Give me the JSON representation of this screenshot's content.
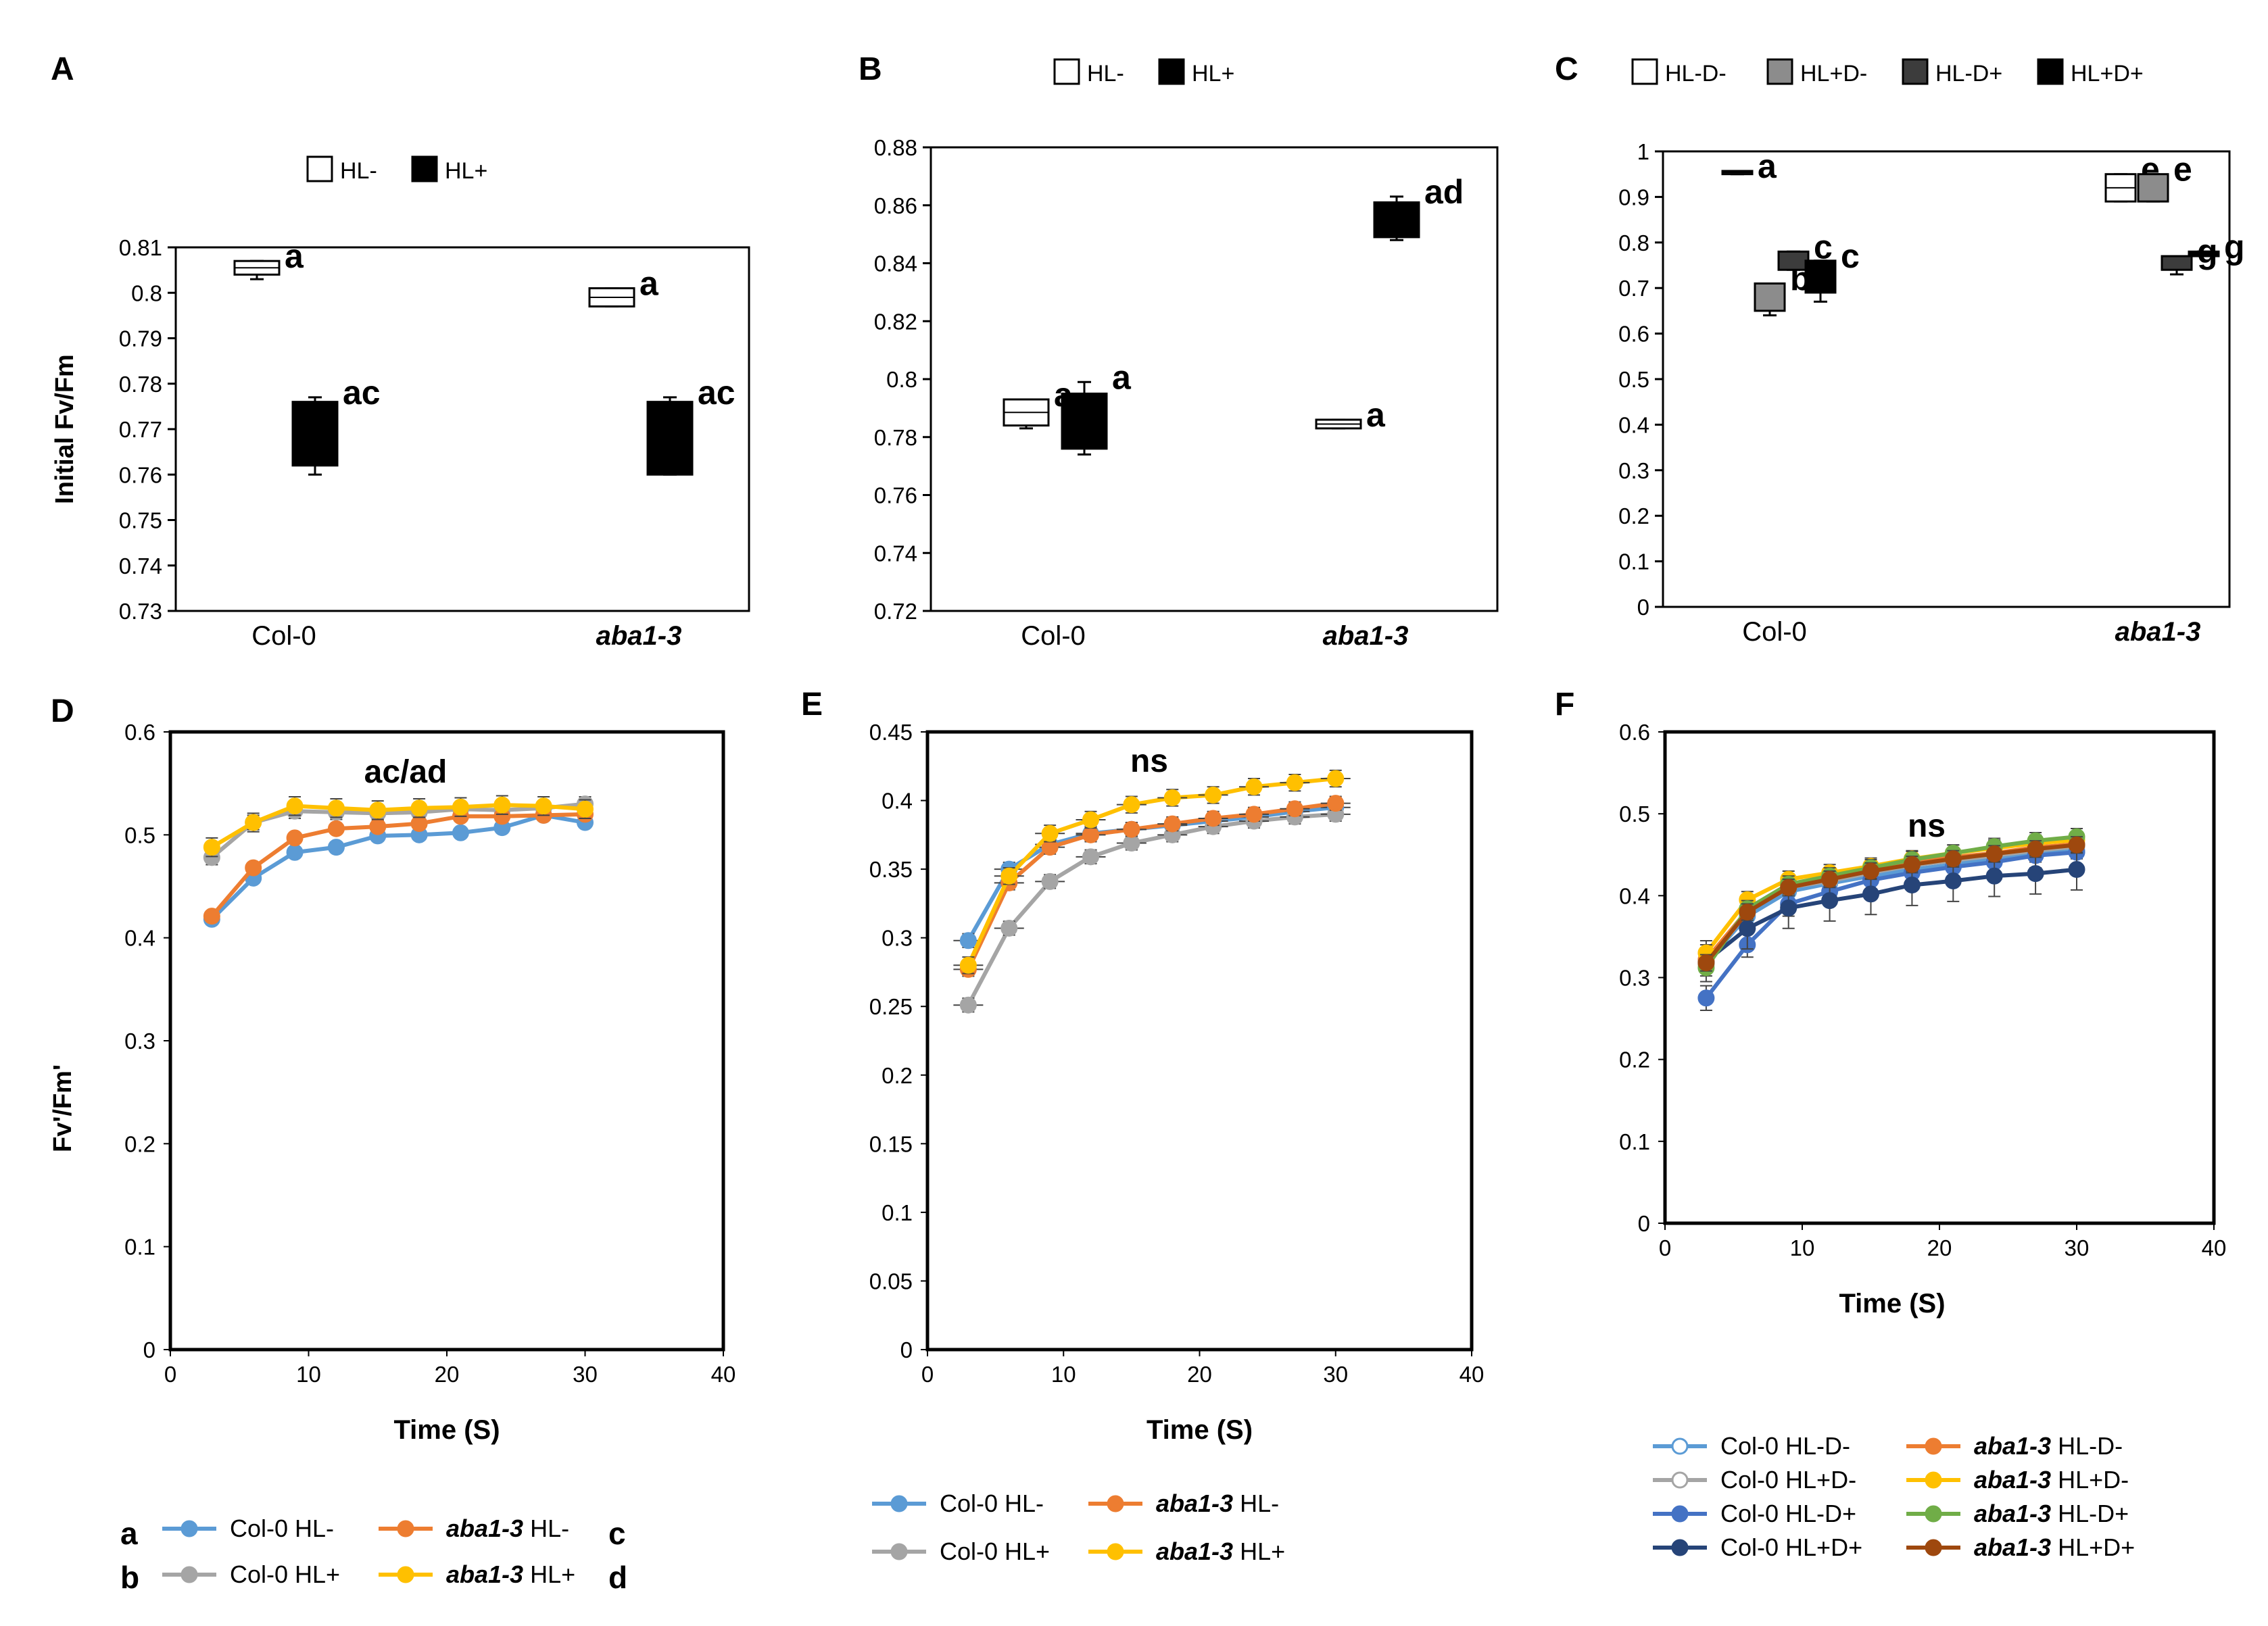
{
  "figure": {
    "y_label_top": "Initial Fv/Fm",
    "y_label_bottom": "Fv'/Fm'"
  },
  "chart_data": [
    {
      "panel": "A",
      "type": "box",
      "legend": [
        {
          "label": "HL-",
          "color": "#ffffff"
        },
        {
          "label": "HL+",
          "color": "#000000"
        }
      ],
      "categories": [
        "Col-0",
        "aba1-3"
      ],
      "italic_categories": [
        false,
        true
      ],
      "ylim": [
        0.73,
        0.81
      ],
      "yticks": [
        0.73,
        0.74,
        0.75,
        0.76,
        0.77,
        0.78,
        0.79,
        0.8,
        0.81
      ],
      "ylabel": "Initial Fv/Fm",
      "boxes": [
        {
          "cat": 0,
          "series": 0,
          "min": 0.803,
          "q1": 0.804,
          "q3": 0.807,
          "max": 0.807,
          "label": "a"
        },
        {
          "cat": 0,
          "series": 1,
          "min": 0.76,
          "q1": 0.762,
          "q3": 0.776,
          "max": 0.777,
          "label": "ac"
        },
        {
          "cat": 1,
          "series": 0,
          "min": 0.797,
          "q1": 0.797,
          "q3": 0.801,
          "max": 0.801,
          "label": "a"
        },
        {
          "cat": 1,
          "series": 1,
          "min": 0.76,
          "q1": 0.76,
          "q3": 0.776,
          "max": 0.777,
          "label": "ac"
        }
      ]
    },
    {
      "panel": "B",
      "type": "box",
      "legend": [
        {
          "label": "HL-",
          "color": "#ffffff"
        },
        {
          "label": "HL+",
          "color": "#000000"
        }
      ],
      "categories": [
        "Col-0",
        "aba1-3"
      ],
      "italic_categories": [
        false,
        true
      ],
      "ylim": [
        0.72,
        0.88
      ],
      "yticks": [
        0.72,
        0.74,
        0.76,
        0.78,
        0.8,
        0.82,
        0.84,
        0.86,
        0.88
      ],
      "boxes": [
        {
          "cat": 0,
          "series": 0,
          "min": 0.783,
          "q1": 0.784,
          "q3": 0.793,
          "max": 0.793,
          "label": "a"
        },
        {
          "cat": 0,
          "series": 1,
          "min": 0.774,
          "q1": 0.776,
          "q3": 0.795,
          "max": 0.799,
          "label": "a"
        },
        {
          "cat": 1,
          "series": 0,
          "min": 0.783,
          "q1": 0.783,
          "q3": 0.786,
          "max": 0.786,
          "label": "a"
        },
        {
          "cat": 1,
          "series": 1,
          "min": 0.848,
          "q1": 0.849,
          "q3": 0.861,
          "max": 0.863,
          "label": "ad"
        }
      ]
    },
    {
      "panel": "C",
      "type": "box",
      "legend": [
        {
          "label": "HL-D-",
          "color": "#ffffff"
        },
        {
          "label": "HL+D-",
          "color": "#8c8c8c"
        },
        {
          "label": "HL-D+",
          "color": "#3c3c3c"
        },
        {
          "label": "HL+D+",
          "color": "#000000"
        }
      ],
      "categories": [
        "Col-0",
        "aba1-3"
      ],
      "italic_categories": [
        false,
        true
      ],
      "ylim": [
        0,
        1
      ],
      "yticks": [
        0,
        0.1,
        0.2,
        0.3,
        0.4,
        0.5,
        0.6,
        0.7,
        0.8,
        0.9,
        1
      ],
      "boxes": [
        {
          "cat": 0,
          "series": 0,
          "min": 0.95,
          "q1": 0.95,
          "q3": 0.957,
          "max": 0.957,
          "label": "a"
        },
        {
          "cat": 0,
          "series": 1,
          "min": 0.64,
          "q1": 0.65,
          "q3": 0.71,
          "max": 0.71,
          "label": "b"
        },
        {
          "cat": 0,
          "series": 2,
          "min": 0.74,
          "q1": 0.74,
          "q3": 0.78,
          "max": 0.78,
          "label": "c"
        },
        {
          "cat": 0,
          "series": 3,
          "min": 0.67,
          "q1": 0.69,
          "q3": 0.76,
          "max": 0.76,
          "label": "c"
        },
        {
          "cat": 1,
          "series": 0,
          "min": 0.89,
          "q1": 0.89,
          "q3": 0.95,
          "max": 0.95,
          "label": "e"
        },
        {
          "cat": 1,
          "series": 1,
          "min": 0.89,
          "q1": 0.89,
          "q3": 0.95,
          "max": 0.95,
          "label": "e"
        },
        {
          "cat": 1,
          "series": 2,
          "min": 0.73,
          "q1": 0.74,
          "q3": 0.77,
          "max": 0.77,
          "label": "g"
        },
        {
          "cat": 1,
          "series": 3,
          "min": 0.77,
          "q1": 0.77,
          "q3": 0.78,
          "max": 0.78,
          "label": "g"
        }
      ]
    },
    {
      "panel": "D",
      "type": "line",
      "xlim": [
        0,
        40
      ],
      "xticks": [
        0,
        10,
        20,
        30,
        40
      ],
      "ylim": [
        0,
        0.6
      ],
      "yticks": [
        0,
        0.1,
        0.2,
        0.3,
        0.4,
        0.5,
        0.6
      ],
      "xlabel": "Time (S)",
      "ylabel": "Fv'/Fm'",
      "annotation": "ac/ad",
      "x": [
        3,
        6,
        9,
        12,
        15,
        18,
        21,
        24,
        27,
        30
      ],
      "series": [
        {
          "name": "Col-0 HL-",
          "genotype": "Col-0",
          "cond": "HL-",
          "color": "#5b9bd5",
          "letter": "a",
          "values": [
            0.418,
            0.458,
            0.483,
            0.488,
            0.499,
            0.5,
            0.502,
            0.507,
            0.519,
            0.512
          ],
          "err": 0.005
        },
        {
          "name": "Col-0 HL+",
          "genotype": "Col-0",
          "cond": "HL+",
          "color": "#a5a5a5",
          "letter": "b",
          "values": [
            0.478,
            0.512,
            0.523,
            0.522,
            0.521,
            0.522,
            0.525,
            0.524,
            0.526,
            0.53
          ],
          "err": 0.007
        },
        {
          "name": "aba1-3 HL-",
          "genotype": "aba1-3",
          "cond": "HL-",
          "color": "#ed7d31",
          "letter": "c",
          "values": [
            0.421,
            0.468,
            0.497,
            0.506,
            0.508,
            0.511,
            0.518,
            0.518,
            0.519,
            0.52
          ],
          "err": 0.005
        },
        {
          "name": "aba1-3 HL+",
          "genotype": "aba1-3",
          "cond": "HL+",
          "color": "#ffc000",
          "letter": "d",
          "values": [
            0.488,
            0.512,
            0.528,
            0.526,
            0.524,
            0.526,
            0.527,
            0.529,
            0.528,
            0.525
          ],
          "err": 0.009
        }
      ]
    },
    {
      "panel": "E",
      "type": "line",
      "xlim": [
        0,
        40
      ],
      "xticks": [
        0,
        10,
        20,
        30,
        40
      ],
      "ylim": [
        0,
        0.45
      ],
      "yticks": [
        0,
        0.05,
        0.1,
        0.15,
        0.2,
        0.25,
        0.3,
        0.35,
        0.4,
        0.45
      ],
      "xlabel": "Time (S)",
      "annotation": "ns",
      "x": [
        3,
        6,
        9,
        12,
        15,
        18,
        21,
        24,
        27,
        30
      ],
      "series": [
        {
          "name": "Col-0 HL-",
          "genotype": "Col-0",
          "cond": "HL-",
          "color": "#5b9bd5",
          "values": [
            0.298,
            0.35,
            0.368,
            0.376,
            0.379,
            0.382,
            0.385,
            0.388,
            0.392,
            0.395
          ],
          "err": 0.005
        },
        {
          "name": "Col-0 HL+",
          "genotype": "Col-0",
          "cond": "HL+",
          "color": "#a5a5a5",
          "values": [
            0.251,
            0.307,
            0.341,
            0.359,
            0.369,
            0.375,
            0.381,
            0.385,
            0.388,
            0.39
          ],
          "err": 0.005
        },
        {
          "name": "aba1-3 HL-",
          "genotype": "aba1-3",
          "cond": "HL-",
          "color": "#ed7d31",
          "values": [
            0.277,
            0.34,
            0.366,
            0.375,
            0.379,
            0.383,
            0.387,
            0.39,
            0.394,
            0.398
          ],
          "err": 0.005
        },
        {
          "name": "aba1-3 HL+",
          "genotype": "aba1-3",
          "cond": "HL+",
          "color": "#ffc000",
          "values": [
            0.28,
            0.345,
            0.376,
            0.386,
            0.397,
            0.402,
            0.404,
            0.41,
            0.413,
            0.416
          ],
          "err": 0.006
        }
      ]
    },
    {
      "panel": "F",
      "type": "line",
      "xlim": [
        0,
        40
      ],
      "xticks": [
        0,
        10,
        20,
        30,
        40
      ],
      "ylim": [
        0,
        0.6
      ],
      "yticks": [
        0,
        0.1,
        0.2,
        0.3,
        0.4,
        0.5,
        0.6
      ],
      "xlabel": "Time (S)",
      "annotation": "ns",
      "x": [
        3,
        6,
        9,
        12,
        15,
        18,
        21,
        24,
        27,
        30
      ],
      "series": [
        {
          "name": "Col-0 HL-D-",
          "genotype": "Col-0",
          "cond": "HL-D-",
          "color": "#5b9bd5",
          "hollow": true,
          "values": [
            0.318,
            0.375,
            0.405,
            0.415,
            0.424,
            0.432,
            0.438,
            0.445,
            0.451,
            0.455
          ],
          "err": 0.01
        },
        {
          "name": "Col-0 HL+D-",
          "genotype": "Col-0",
          "cond": "HL+D-",
          "color": "#a5a5a5",
          "hollow": true,
          "values": [
            0.316,
            0.38,
            0.41,
            0.418,
            0.428,
            0.437,
            0.443,
            0.449,
            0.455,
            0.46
          ],
          "err": 0.01
        },
        {
          "name": "Col-0 HL-D+",
          "genotype": "Col-0",
          "cond": "HL-D+",
          "color": "#4472c4",
          "values": [
            0.275,
            0.34,
            0.39,
            0.405,
            0.419,
            0.428,
            0.435,
            0.441,
            0.449,
            0.453
          ],
          "err": 0.015
        },
        {
          "name": "Col-0 HL+D+",
          "genotype": "Col-0",
          "cond": "HL+D+",
          "color": "#264478",
          "values": [
            0.32,
            0.36,
            0.385,
            0.394,
            0.402,
            0.413,
            0.418,
            0.424,
            0.427,
            0.432
          ],
          "err": 0.025
        },
        {
          "name": "aba1-3 HL-D-",
          "genotype": "aba1-3",
          "cond": "HL-D-",
          "color": "#ed7d31",
          "values": [
            0.322,
            0.382,
            0.412,
            0.422,
            0.431,
            0.44,
            0.447,
            0.452,
            0.459,
            0.463
          ],
          "err": 0.01
        },
        {
          "name": "aba1-3 HL+D-",
          "genotype": "aba1-3",
          "cond": "HL+D-",
          "color": "#ffc000",
          "values": [
            0.33,
            0.395,
            0.42,
            0.428,
            0.436,
            0.445,
            0.452,
            0.458,
            0.464,
            0.468
          ],
          "err": 0.01
        },
        {
          "name": "aba1-3 HL-D+",
          "genotype": "aba1-3",
          "cond": "HL-D+",
          "color": "#70ad47",
          "values": [
            0.312,
            0.384,
            0.414,
            0.424,
            0.434,
            0.444,
            0.452,
            0.46,
            0.467,
            0.472
          ],
          "err": 0.01
        },
        {
          "name": "aba1-3 HL+D+",
          "genotype": "aba1-3",
          "cond": "HL+D+",
          "color": "#9e480e",
          "values": [
            0.318,
            0.38,
            0.41,
            0.42,
            0.43,
            0.438,
            0.445,
            0.451,
            0.457,
            0.462
          ],
          "err": 0.01
        }
      ]
    }
  ]
}
